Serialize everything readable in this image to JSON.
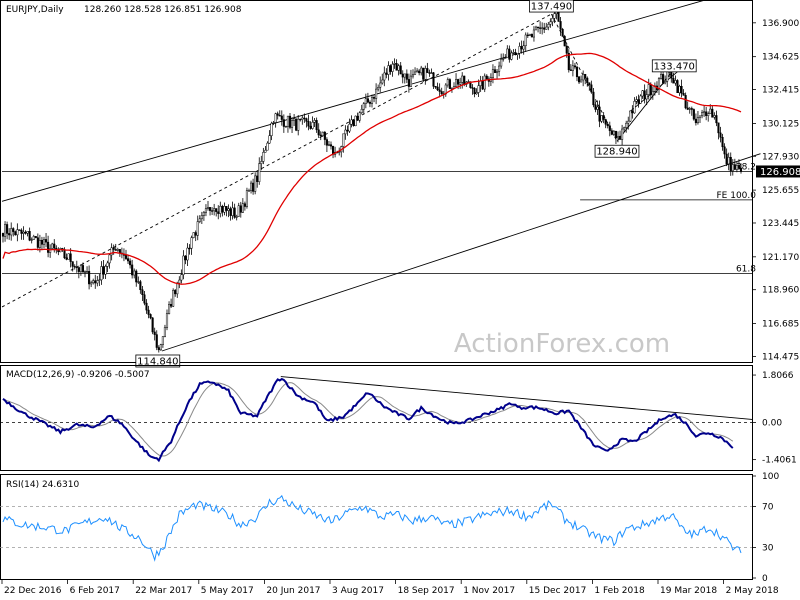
{
  "header": {
    "symbol_timeframe": "EURJPY,Daily",
    "ohlc": "128.260 128.528 126.851 126.908"
  },
  "watermark": "ActionForex.com",
  "colors": {
    "bullish": "#000000",
    "bearish": "#000000",
    "sma": "#e00000",
    "macd_main": "#00008b",
    "macd_signal": "#8a8a8a",
    "rsi": "#1e90ff",
    "last_price_bg": "#000000"
  },
  "chart_data": [
    {
      "type": "candlestick",
      "panel": "price",
      "y_ticks": [
        "136.900",
        "134.625",
        "132.415",
        "130.125",
        "127.930",
        "125.655",
        "123.445",
        "121.170",
        "118.960",
        "116.685",
        "114.475"
      ],
      "y_tick_values": [
        136.9,
        134.625,
        132.415,
        130.125,
        127.93,
        125.655,
        123.445,
        121.17,
        118.96,
        116.685,
        114.475
      ],
      "ylim": [
        114.1,
        138.3
      ],
      "x_ticks": [
        "22 Dec 2016",
        "6 Feb 2017",
        "22 Mar 2017",
        "5 May 2017",
        "20 Jun 2017",
        "3 Aug 2017",
        "18 Sep 2017",
        "1 Nov 2017",
        "15 Dec 2017",
        "1 Feb 2018",
        "19 Mar 2018",
        "2 May 2018"
      ],
      "x_tick_bar_index": [
        0,
        32,
        64,
        96,
        128,
        160,
        192,
        224,
        256,
        288,
        320,
        352
      ],
      "n_bars": 370,
      "anchors": [
        [
          0,
          123.0
        ],
        [
          12,
          122.6
        ],
        [
          22,
          121.8
        ],
        [
          33,
          121.0
        ],
        [
          38,
          120.2
        ],
        [
          45,
          119.4
        ],
        [
          55,
          121.9
        ],
        [
          60,
          121.2
        ],
        [
          68,
          118.5
        ],
        [
          76,
          114.84
        ],
        [
          82,
          118.2
        ],
        [
          92,
          122.5
        ],
        [
          102,
          124.7
        ],
        [
          114,
          124.0
        ],
        [
          124,
          126.5
        ],
        [
          132,
          130.6
        ],
        [
          142,
          130.1
        ],
        [
          152,
          130.0
        ],
        [
          162,
          128.0
        ],
        [
          172,
          130.5
        ],
        [
          182,
          132.3
        ],
        [
          190,
          134.3
        ],
        [
          198,
          133.0
        ],
        [
          206,
          133.6
        ],
        [
          214,
          132.5
        ],
        [
          222,
          133.0
        ],
        [
          232,
          132.4
        ],
        [
          242,
          134.2
        ],
        [
          250,
          135.2
        ],
        [
          258,
          136.0
        ],
        [
          266,
          136.8
        ],
        [
          270,
          137.49
        ],
        [
          276,
          133.8
        ],
        [
          284,
          133.0
        ],
        [
          292,
          130.3
        ],
        [
          300,
          128.94
        ],
        [
          306,
          130.9
        ],
        [
          312,
          132.0
        ],
        [
          320,
          133.0
        ],
        [
          326,
          133.47
        ],
        [
          332,
          131.8
        ],
        [
          338,
          130.1
        ],
        [
          344,
          131.2
        ],
        [
          348,
          130.4
        ],
        [
          352,
          127.8
        ],
        [
          356,
          127.2
        ],
        [
          360,
          126.908
        ]
      ],
      "last_price": "126.908",
      "sma_period_label": "",
      "annotations": [
        {
          "text": "137.490",
          "bar": 268,
          "value": 137.49
        },
        {
          "text": "133.470",
          "bar": 325,
          "value": 133.47
        },
        {
          "text": "128.940",
          "bar": 300,
          "value": 128.94
        },
        {
          "text": "114.840",
          "bar": 76,
          "value": 114.84
        }
      ],
      "levels": [
        {
          "label": "38.2",
          "value": 126.908
        },
        {
          "label": "FE 100.0",
          "value": 125.0
        },
        {
          "label": "61.8",
          "value": 120.05
        }
      ],
      "trendlines": [
        {
          "style": "solid",
          "from": [
            0,
            124.9
          ],
          "to": [
            370,
            139.5
          ]
        },
        {
          "style": "solid",
          "from": [
            78,
            114.84
          ],
          "to": [
            370,
            128.1
          ]
        },
        {
          "style": "dashed",
          "from": [
            0,
            117.8
          ],
          "to": [
            268,
            137.49
          ]
        },
        {
          "style": "dashed",
          "from": [
            268,
            137.49
          ],
          "to": [
            300,
            128.94
          ]
        },
        {
          "style": "solid",
          "from": [
            300,
            128.94
          ],
          "to": [
            326,
            133.47
          ]
        },
        {
          "style": "solid",
          "from": [
            306,
            130.9
          ],
          "to": [
            332,
            133.9
          ]
        }
      ]
    },
    {
      "type": "line",
      "panel": "macd",
      "title": "MACD(12,26,9) -0.9206 -0.5007",
      "y_ticks": [
        "1.8066",
        "0.00",
        "-1.4061"
      ],
      "y_tick_values": [
        1.8066,
        0.0,
        -1.4061
      ],
      "ylim": [
        -1.8,
        2.15
      ],
      "main_anchors": [
        [
          0,
          0.9
        ],
        [
          10,
          0.35
        ],
        [
          18,
          0.05
        ],
        [
          28,
          -0.35
        ],
        [
          36,
          -0.08
        ],
        [
          44,
          -0.18
        ],
        [
          52,
          0.25
        ],
        [
          58,
          -0.05
        ],
        [
          64,
          -0.62
        ],
        [
          72,
          -1.3
        ],
        [
          76,
          -1.38
        ],
        [
          82,
          -0.7
        ],
        [
          90,
          0.7
        ],
        [
          96,
          1.45
        ],
        [
          102,
          1.55
        ],
        [
          110,
          1.2
        ],
        [
          116,
          0.35
        ],
        [
          124,
          0.25
        ],
        [
          128,
          0.85
        ],
        [
          134,
          1.62
        ],
        [
          136,
          1.7
        ],
        [
          144,
          1.0
        ],
        [
          152,
          0.75
        ],
        [
          158,
          0.05
        ],
        [
          166,
          0.22
        ],
        [
          174,
          0.8
        ],
        [
          178,
          1.15
        ],
        [
          186,
          0.6
        ],
        [
          192,
          0.35
        ],
        [
          198,
          0.15
        ],
        [
          204,
          0.55
        ],
        [
          214,
          0.1
        ],
        [
          220,
          -0.05
        ],
        [
          228,
          0.1
        ],
        [
          236,
          0.35
        ],
        [
          242,
          0.5
        ],
        [
          248,
          0.75
        ],
        [
          252,
          0.55
        ],
        [
          256,
          0.6
        ],
        [
          262,
          0.55
        ],
        [
          270,
          0.35
        ],
        [
          276,
          0.45
        ],
        [
          282,
          -0.2
        ],
        [
          288,
          -0.85
        ],
        [
          294,
          -1.1
        ],
        [
          302,
          -0.65
        ],
        [
          308,
          -0.72
        ],
        [
          316,
          -0.2
        ],
        [
          322,
          0.2
        ],
        [
          328,
          0.3
        ],
        [
          334,
          -0.1
        ],
        [
          338,
          -0.5
        ],
        [
          344,
          -0.38
        ],
        [
          350,
          -0.55
        ],
        [
          356,
          -0.92
        ]
      ],
      "signal_lag": 4
    },
    {
      "type": "line",
      "panel": "rsi",
      "title": "RSI(14) 24.6310",
      "y_ticks": [
        "100",
        "70",
        "30",
        "0"
      ],
      "y_tick_values": [
        100,
        70,
        30,
        0
      ],
      "ylim": [
        0,
        100
      ],
      "reference_levels": [
        70,
        30
      ],
      "anchors": [
        [
          0,
          58
        ],
        [
          10,
          52
        ],
        [
          20,
          50
        ],
        [
          30,
          46
        ],
        [
          40,
          54
        ],
        [
          50,
          60
        ],
        [
          58,
          48
        ],
        [
          66,
          40
        ],
        [
          74,
          22
        ],
        [
          78,
          30
        ],
        [
          86,
          62
        ],
        [
          94,
          72
        ],
        [
          102,
          68
        ],
        [
          110,
          62
        ],
        [
          116,
          52
        ],
        [
          124,
          60
        ],
        [
          130,
          74
        ],
        [
          136,
          78
        ],
        [
          144,
          68
        ],
        [
          152,
          62
        ],
        [
          160,
          55
        ],
        [
          168,
          64
        ],
        [
          176,
          70
        ],
        [
          184,
          60
        ],
        [
          192,
          62
        ],
        [
          200,
          56
        ],
        [
          208,
          60
        ],
        [
          216,
          52
        ],
        [
          224,
          54
        ],
        [
          232,
          60
        ],
        [
          240,
          64
        ],
        [
          248,
          66
        ],
        [
          256,
          60
        ],
        [
          264,
          70
        ],
        [
          268,
          72
        ],
        [
          274,
          58
        ],
        [
          282,
          48
        ],
        [
          290,
          40
        ],
        [
          298,
          36
        ],
        [
          304,
          48
        ],
        [
          312,
          52
        ],
        [
          320,
          58
        ],
        [
          326,
          62
        ],
        [
          332,
          46
        ],
        [
          338,
          42
        ],
        [
          344,
          50
        ],
        [
          350,
          42
        ],
        [
          356,
          30
        ],
        [
          360,
          24.6
        ]
      ]
    }
  ]
}
